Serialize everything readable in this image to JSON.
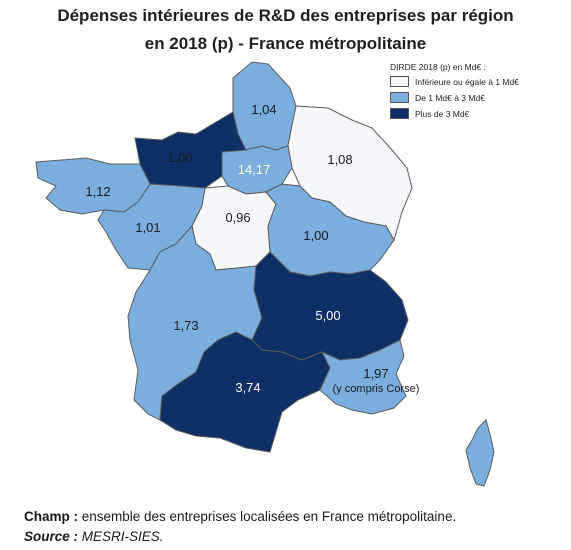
{
  "title": {
    "line1": "Dépenses intérieures de R&D des entreprises par région",
    "line2": "en 2018 (p) - France métropolitaine"
  },
  "legend": {
    "title": "DIRDE 2018 (p) en Md€ :",
    "items": [
      {
        "label": "Inférieure ou égale à 1 Md€",
        "color": "#f5f7fb"
      },
      {
        "label": "De 1 Md€ à 3 Md€",
        "color": "#7aaede"
      },
      {
        "label": "Plus de 3 Md€",
        "color": "#0f2f68"
      }
    ]
  },
  "regions": [
    {
      "name": "Hauts-de-France",
      "value": "1,04",
      "class": "medium"
    },
    {
      "name": "Normandie",
      "value": "1,00",
      "class": "low"
    },
    {
      "name": "Île-de-France",
      "value": "14,17",
      "class": "high"
    },
    {
      "name": "Grand Est",
      "value": "1,08",
      "class": "medium"
    },
    {
      "name": "Bretagne",
      "value": "1,12",
      "class": "medium"
    },
    {
      "name": "Pays de la Loire",
      "value": "1,01",
      "class": "medium"
    },
    {
      "name": "Centre-Val de Loire",
      "value": "0,96",
      "class": "low"
    },
    {
      "name": "Bourgogne-Franche-Comté",
      "value": "1,00",
      "class": "medium"
    },
    {
      "name": "Nouvelle-Aquitaine",
      "value": "1,73",
      "class": "medium"
    },
    {
      "name": "Auvergne-Rhône-Alpes",
      "value": "5,00",
      "class": "high"
    },
    {
      "name": "Occitanie",
      "value": "3,74",
      "class": "high"
    },
    {
      "name": "Provence-Alpes-Côte d'Azur",
      "value": "1,97",
      "class": "medium",
      "note": "(y compris Corse)"
    },
    {
      "name": "Corse",
      "value": "",
      "class": "medium"
    }
  ],
  "footer": {
    "champ_label": "Champ :",
    "champ_text": " ensemble des entreprises localisées en France métropolitaine.",
    "source_label": "Source :",
    "source_text": " MESRI-SIES."
  }
}
